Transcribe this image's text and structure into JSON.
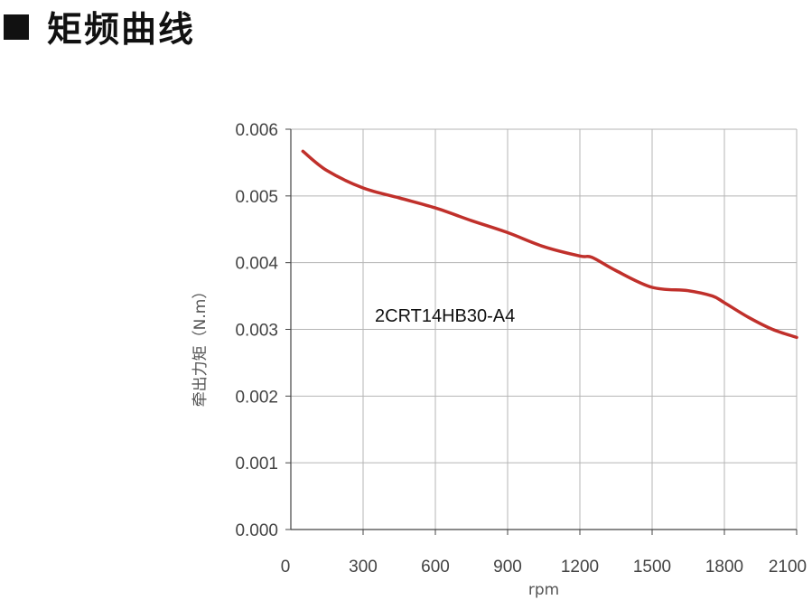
{
  "page_title": "矩频曲线",
  "icons": {
    "title_marker": "filled-square-icon"
  },
  "colors": {
    "series": "#c0302b",
    "grid": "#b5b5b5",
    "axis": "#444444",
    "title": "#111111"
  },
  "chart_data": {
    "type": "line",
    "title": "",
    "xlabel": "rpm",
    "ylabel": "牵出力矩（N.m）",
    "xlim": [
      0,
      2100
    ],
    "ylim": [
      0,
      0.006
    ],
    "x_ticks": [
      "0",
      "300",
      "600",
      "900",
      "1200",
      "1500",
      "1800",
      "2100"
    ],
    "y_ticks": [
      "0.000",
      "0.001",
      "0.002",
      "0.003",
      "0.004",
      "0.005",
      "0.006"
    ],
    "grid": true,
    "annotation": "2CRT14HB30-A4",
    "series": [
      {
        "name": "",
        "x": [
          50,
          150,
          300,
          450,
          600,
          750,
          900,
          1050,
          1200,
          1250,
          1350,
          1500,
          1650,
          1750,
          1800,
          1900,
          2000,
          2100
        ],
        "y": [
          0.00567,
          0.00538,
          0.00512,
          0.00497,
          0.00482,
          0.00463,
          0.00445,
          0.00424,
          0.0041,
          0.00408,
          0.00388,
          0.00363,
          0.00358,
          0.0035,
          0.0034,
          0.00318,
          0.003,
          0.00288
        ]
      }
    ]
  }
}
